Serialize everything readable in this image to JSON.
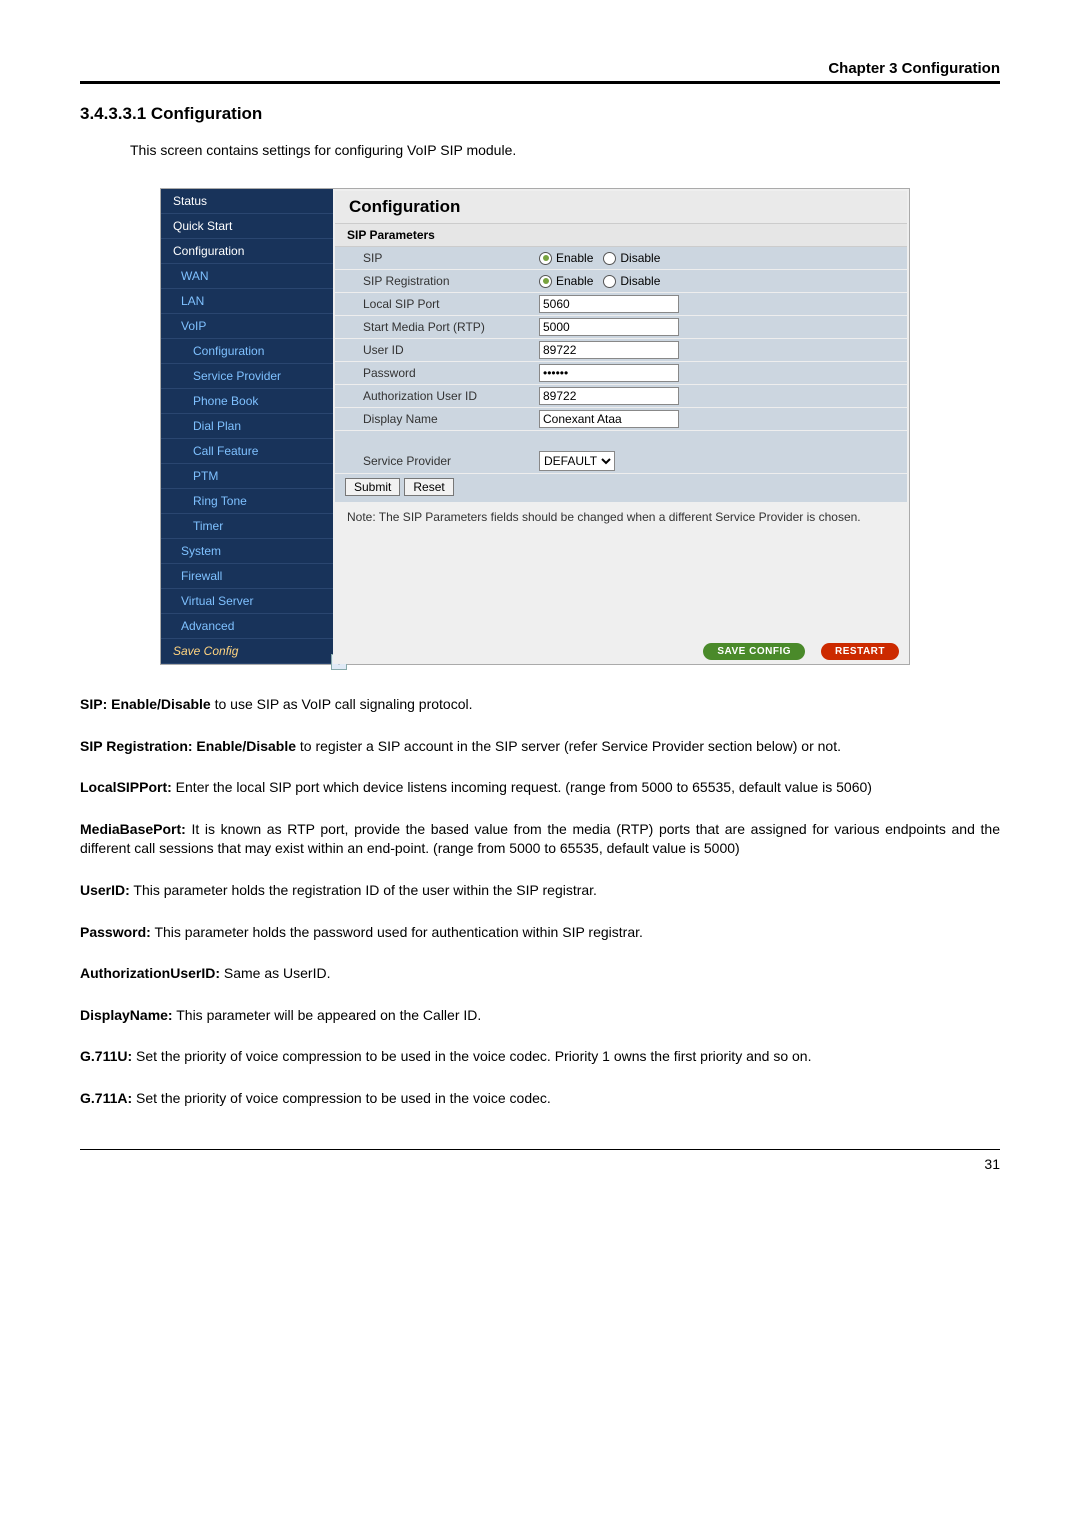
{
  "chapter_header": "Chapter 3 Configuration",
  "section_number": "3.4.3.3.1 Configuration",
  "section_intro": "This screen contains settings for configuring VoIP SIP module.",
  "sidebar": {
    "items": [
      {
        "label": "Status",
        "cls": "white"
      },
      {
        "label": "Quick Start",
        "cls": "white"
      },
      {
        "label": "Configuration",
        "cls": "white"
      },
      {
        "label": "WAN",
        "cls": "lightblue"
      },
      {
        "label": "LAN",
        "cls": "lightblue"
      },
      {
        "label": "VoIP",
        "cls": "lightblue"
      },
      {
        "label": "Configuration",
        "cls": "lightblue2"
      },
      {
        "label": "Service Provider",
        "cls": "lightblue2"
      },
      {
        "label": "Phone Book",
        "cls": "lightblue2"
      },
      {
        "label": "Dial Plan",
        "cls": "lightblue2"
      },
      {
        "label": "Call Feature",
        "cls": "lightblue2"
      },
      {
        "label": "PTM",
        "cls": "lightblue2"
      },
      {
        "label": "Ring Tone",
        "cls": "lightblue2"
      },
      {
        "label": "Timer",
        "cls": "lightblue2"
      },
      {
        "label": "System",
        "cls": "lightblue"
      },
      {
        "label": "Firewall",
        "cls": "lightblue"
      },
      {
        "label": "Virtual Server",
        "cls": "lightblue"
      },
      {
        "label": "Advanced",
        "cls": "lightblue"
      },
      {
        "label": "Save Config",
        "cls": "save"
      }
    ]
  },
  "config": {
    "title": "Configuration",
    "section_label": "SIP Parameters",
    "rows": {
      "sip_label": "SIP",
      "sip_enable": "Enable",
      "sip_disable": "Disable",
      "reg_label": "SIP Registration",
      "reg_enable": "Enable",
      "reg_disable": "Disable",
      "local_port_label": "Local SIP Port",
      "local_port_value": "5060",
      "media_port_label": "Start Media Port (RTP)",
      "media_port_value": "5000",
      "userid_label": "User ID",
      "userid_value": "89722",
      "password_label": "Password",
      "password_value": "••••••",
      "auth_label": "Authorization User ID",
      "auth_value": "89722",
      "display_label": "Display Name",
      "display_value": "Conexant Ataa",
      "sp_label": "Service Provider",
      "sp_value": "DEFAULT"
    },
    "buttons": {
      "submit": "Submit",
      "reset": "Reset"
    },
    "note": "Note: The SIP Parameters fields should be changed when a different Service Provider is chosen.",
    "save_config": "SAVE CONFIG",
    "restart": "RESTART"
  },
  "descriptions": [
    {
      "bold": "SIP: Enable/Disable",
      "text": " to use SIP as VoIP call signaling protocol."
    },
    {
      "bold": "SIP Registration: Enable/Disable",
      "text": " to register a SIP account in the SIP server (refer Service Provider section below) or not."
    },
    {
      "bold": "LocalSIPPort:",
      "text": " Enter the local SIP port which device listens incoming request. (range from 5000 to 65535, default value is 5060)"
    },
    {
      "bold": "MediaBasePort:",
      "text": " It is known as RTP port, provide the based value from the media (RTP) ports that are assigned for various endpoints and the different call sessions that may exist within an end-point. (range from 5000 to 65535, default value is 5000)"
    },
    {
      "bold": "UserID:",
      "text": " This parameter holds the registration ID of the user within the SIP registrar."
    },
    {
      "bold": "Password:",
      "text": " This parameter holds the password used for authentication within SIP registrar."
    },
    {
      "bold": "AuthorizationUserID:",
      "text": " Same as UserID."
    },
    {
      "bold": "DisplayName:",
      "text": " This parameter will be appeared on the Caller ID."
    },
    {
      "bold": "G.711U:",
      "text": " Set the priority of voice compression to be used in the voice codec. Priority 1 owns the first priority and so on."
    },
    {
      "bold": "G.711A:",
      "text": " Set the priority of voice compression to be used in the voice codec."
    }
  ],
  "page_number": "31"
}
